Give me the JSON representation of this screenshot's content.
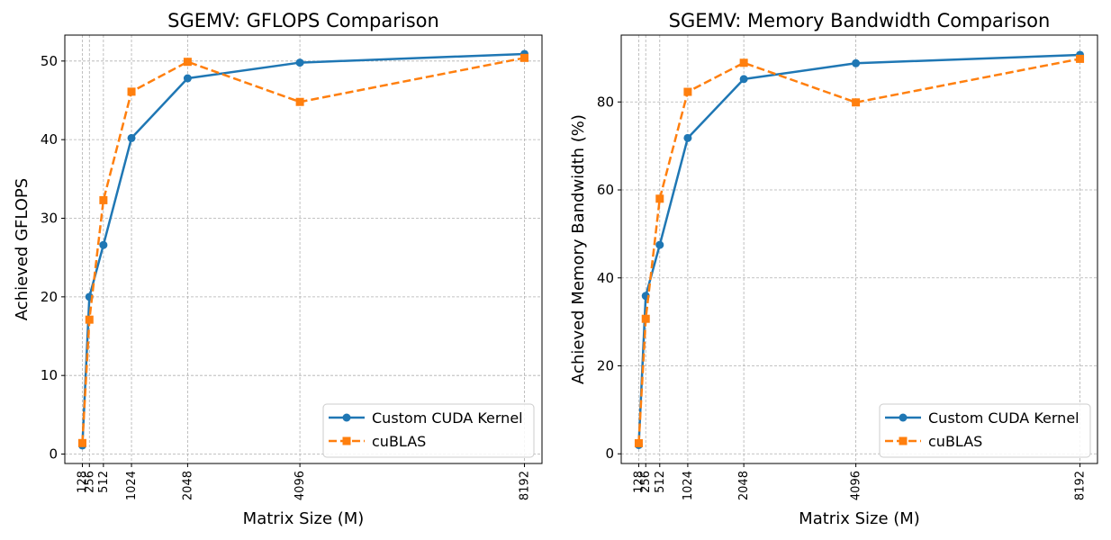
{
  "chart_data": [
    {
      "type": "line",
      "title": "SGEMV: GFLOPS Comparison",
      "xlabel": "Matrix Size (M)",
      "ylabel": "Achieved GFLOPS",
      "x": [
        128,
        256,
        512,
        1024,
        2048,
        4096,
        8192
      ],
      "xticks": [
        "128",
        "256",
        "512",
        "1024",
        "2048",
        "4096",
        "8192"
      ],
      "xlim": [
        -192,
        8512
      ],
      "ylim": [
        -1.2,
        53.3
      ],
      "yticks": [
        0,
        10,
        20,
        30,
        40,
        50
      ],
      "grid": true,
      "legend_position": "lower-right",
      "series": [
        {
          "name": "Custom CUDA Kernel",
          "color": "#1f77b4",
          "marker": "circle",
          "linestyle": "solid",
          "values": [
            1.1,
            20.0,
            26.6,
            40.2,
            47.8,
            49.8,
            50.9
          ]
        },
        {
          "name": "cuBLAS",
          "color": "#ff7f0e",
          "marker": "square",
          "linestyle": "dashed",
          "values": [
            1.4,
            17.1,
            32.3,
            46.1,
            49.9,
            44.8,
            50.4
          ]
        }
      ]
    },
    {
      "type": "line",
      "title": "SGEMV: Memory Bandwidth Comparison",
      "xlabel": "Matrix Size (M)",
      "ylabel": "Achieved Memory Bandwidth (%)",
      "x": [
        128,
        256,
        512,
        1024,
        2048,
        4096,
        8192
      ],
      "xticks": [
        "128",
        "256",
        "512",
        "1024",
        "2048",
        "4096",
        "8192"
      ],
      "xlim": [
        -192,
        8512
      ],
      "ylim": [
        -2.2,
        95.2
      ],
      "yticks": [
        0,
        20,
        40,
        60,
        80
      ],
      "grid": true,
      "legend_position": "lower-right",
      "series": [
        {
          "name": "Custom CUDA Kernel",
          "color": "#1f77b4",
          "marker": "circle",
          "linestyle": "solid",
          "values": [
            2.0,
            35.9,
            47.5,
            71.8,
            85.2,
            88.8,
            90.7
          ]
        },
        {
          "name": "cuBLAS",
          "color": "#ff7f0e",
          "marker": "square",
          "linestyle": "dashed",
          "values": [
            2.4,
            30.7,
            58.0,
            82.3,
            88.9,
            79.9,
            89.8
          ]
        }
      ]
    }
  ]
}
